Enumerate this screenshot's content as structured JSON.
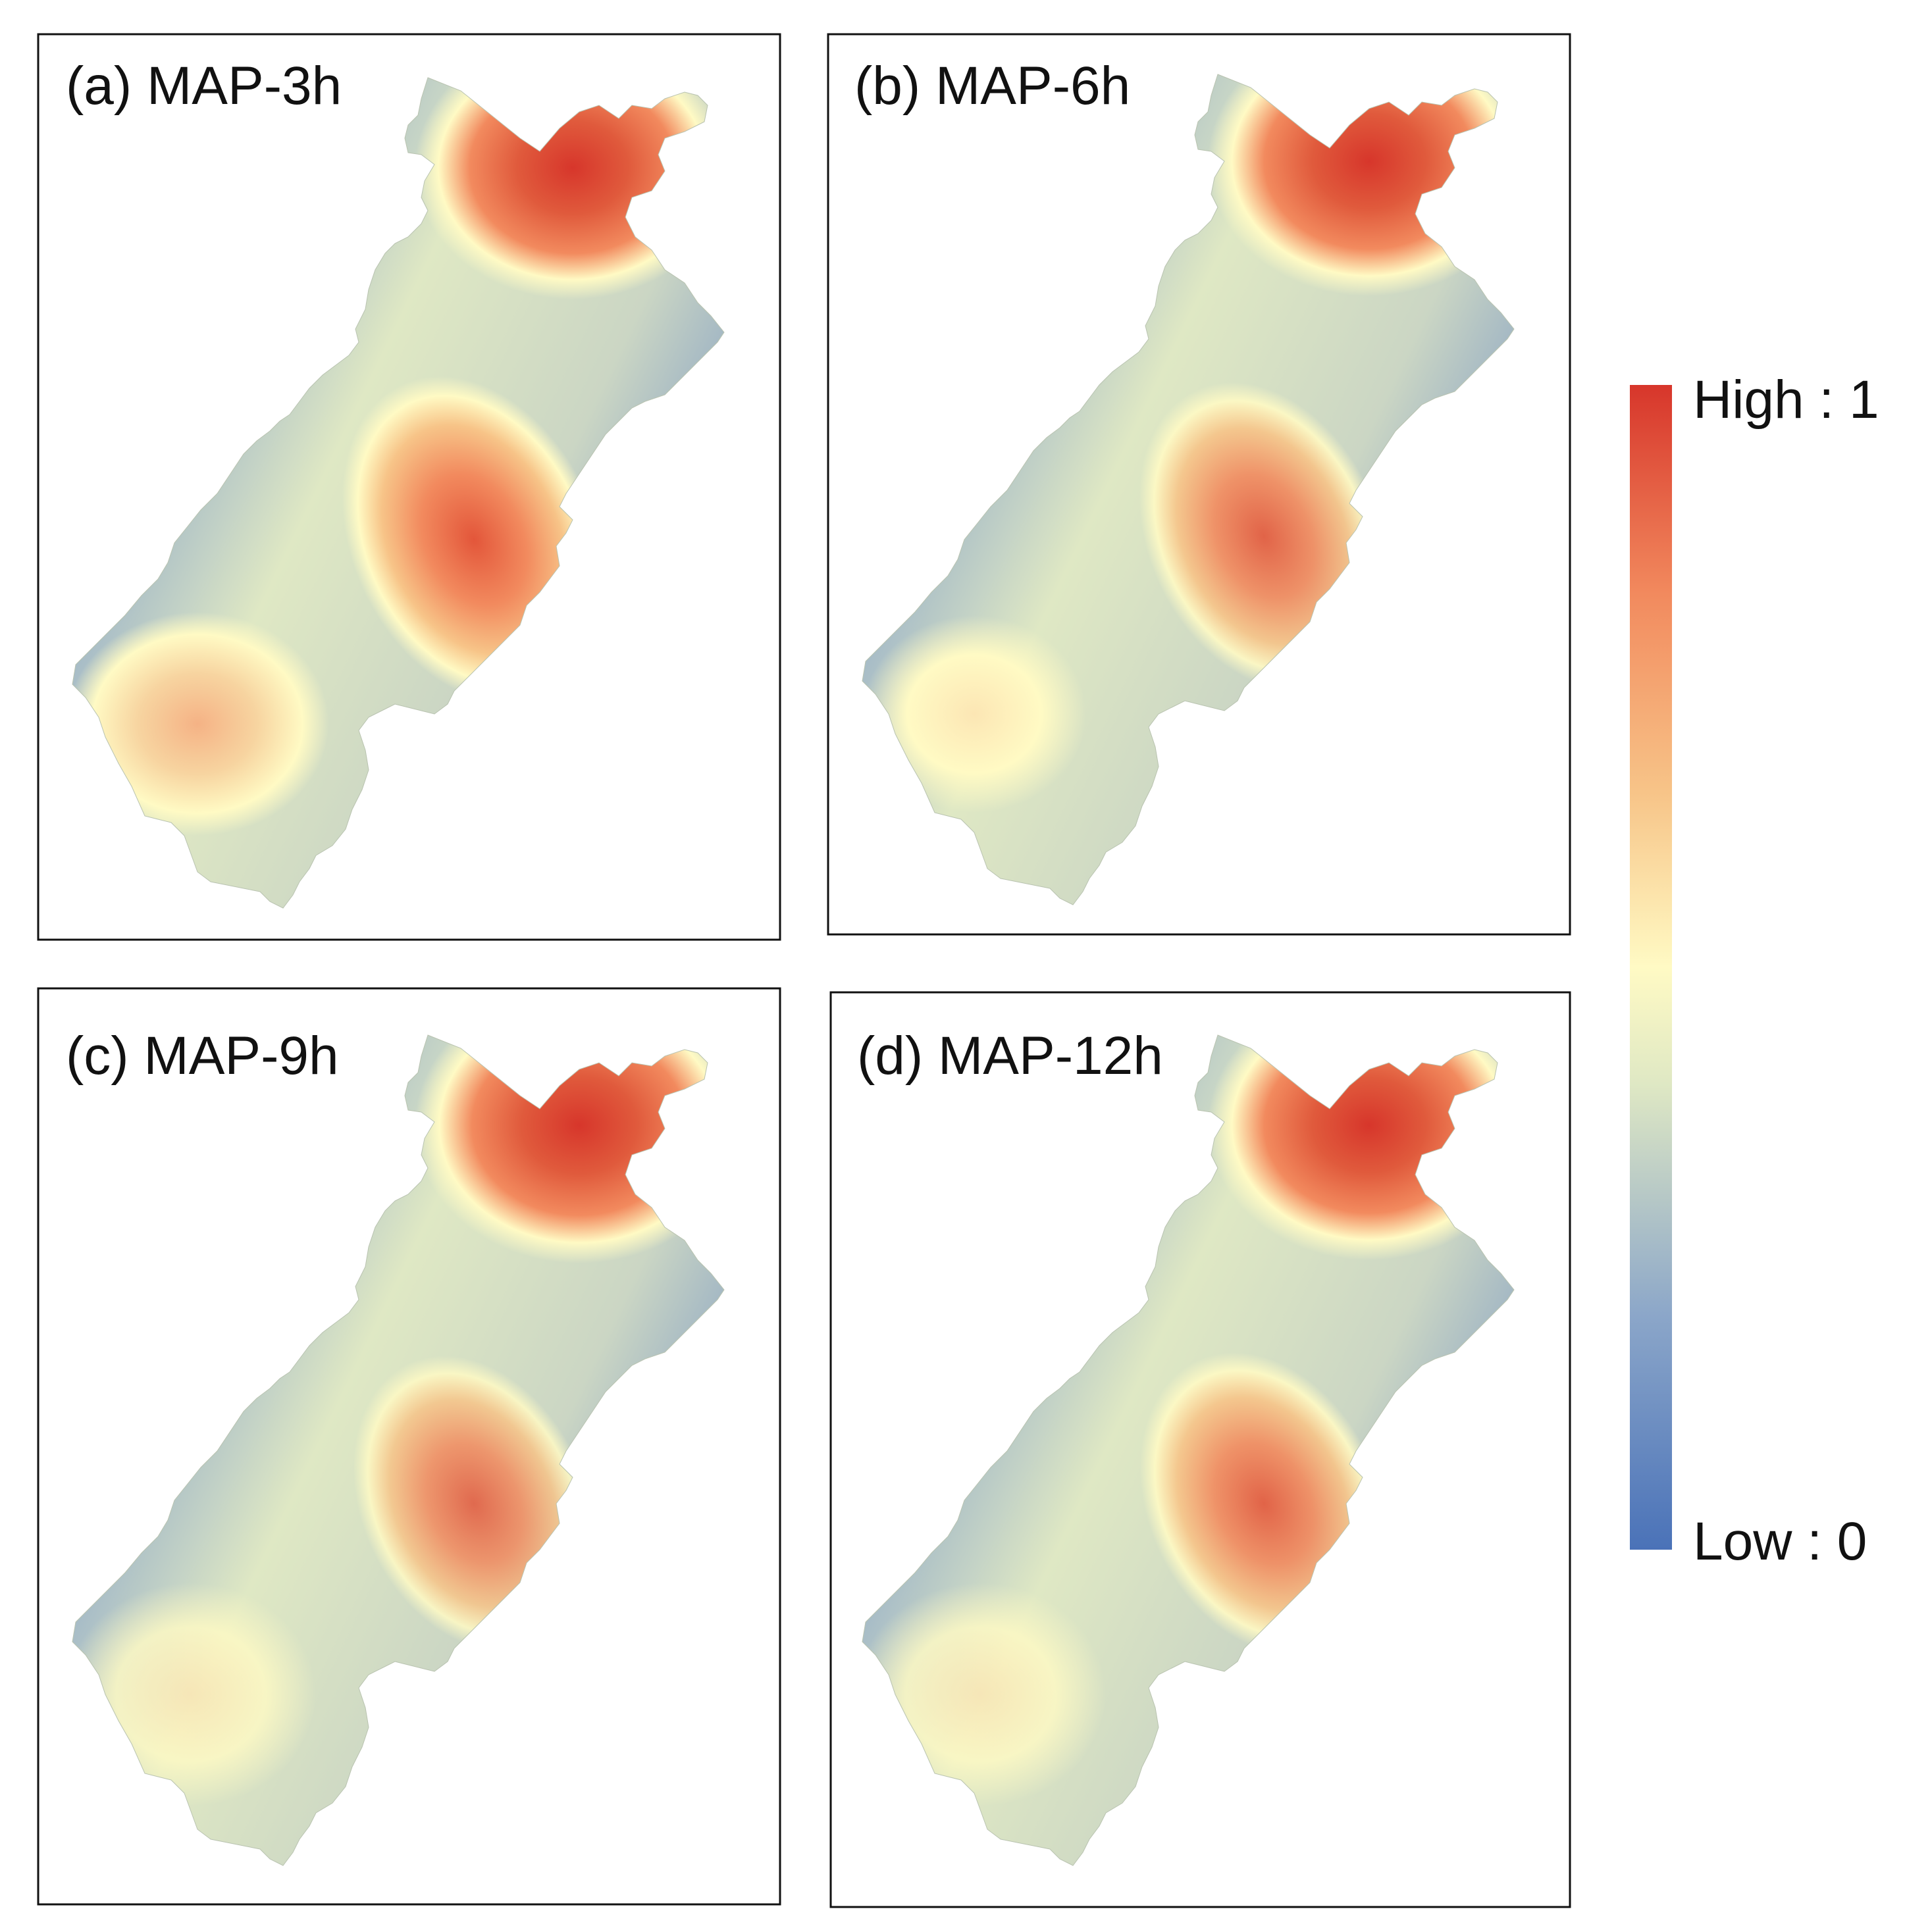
{
  "figure": {
    "panels": [
      {
        "id": "a",
        "title": "(a) MAP-3h"
      },
      {
        "id": "b",
        "title": "(b) MAP-6h"
      },
      {
        "id": "c",
        "title": "(c) MAP-9h"
      },
      {
        "id": "d",
        "title": "(d) MAP-12h"
      }
    ]
  },
  "legend": {
    "high_label": "High : 1",
    "low_label": "Low : 0",
    "high_value": 1,
    "low_value": 0,
    "colors": [
      "#4a72b8",
      "#8ba6c9",
      "#dfe8c4",
      "#fffac4",
      "#f7c488",
      "#f28a5e",
      "#d7362b"
    ]
  },
  "map_data": {
    "panels": [
      {
        "id": "a",
        "hotspots": [
          {
            "region": "north",
            "value": 0.95
          },
          {
            "region": "center",
            "value": 0.85
          },
          {
            "region": "southwest",
            "value": 0.62
          }
        ]
      },
      {
        "id": "b",
        "hotspots": [
          {
            "region": "north",
            "value": 0.97
          },
          {
            "region": "center",
            "value": 0.78
          },
          {
            "region": "southwest",
            "value": 0.55
          }
        ]
      },
      {
        "id": "c",
        "hotspots": [
          {
            "region": "north",
            "value": 0.98
          },
          {
            "region": "center",
            "value": 0.74
          },
          {
            "region": "southwest",
            "value": 0.5
          }
        ]
      },
      {
        "id": "d",
        "hotspots": [
          {
            "region": "north",
            "value": 0.97
          },
          {
            "region": "center",
            "value": 0.8
          },
          {
            "region": "southwest",
            "value": 0.5
          }
        ]
      }
    ]
  }
}
